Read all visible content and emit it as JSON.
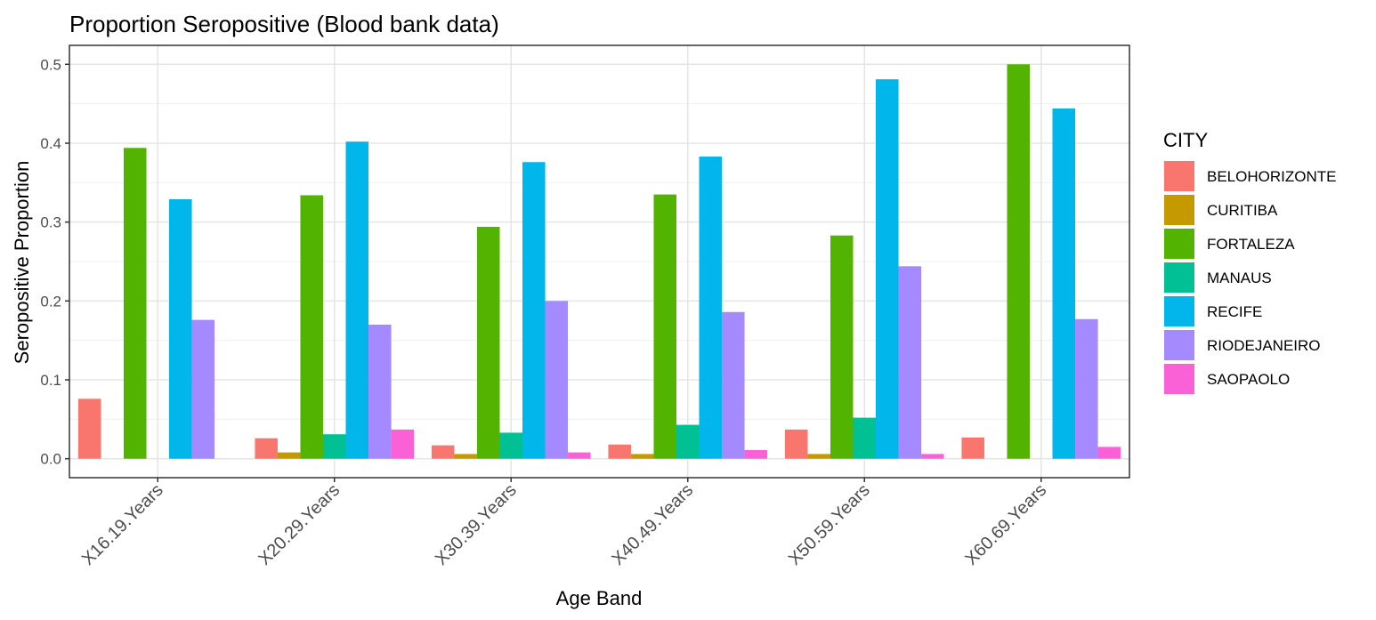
{
  "chart_data": {
    "type": "bar",
    "title": "Proportion Seropositive (Blood bank data)",
    "xlabel": "Age Band",
    "ylabel": "Seropositive Proportion",
    "ylim": [
      -0.024,
      0.524
    ],
    "yticks": [
      0.0,
      0.1,
      0.2,
      0.3,
      0.4,
      0.5
    ],
    "ytick_labels": [
      "0.0",
      "0.1",
      "0.2",
      "0.3",
      "0.4",
      "0.5"
    ],
    "grid": true,
    "legend_title": "CITY",
    "legend_position": "right",
    "categories": [
      "X16.19.Years",
      "X20.29.Years",
      "X30.39.Years",
      "X40.49.Years",
      "X50.59.Years",
      "X60.69.Years"
    ],
    "series": [
      {
        "name": "BELOHORIZONTE",
        "color": "#F8766D",
        "values": [
          0.076,
          0.026,
          0.017,
          0.018,
          0.037,
          0.027
        ]
      },
      {
        "name": "CURITIBA",
        "color": "#C49A00",
        "values": [
          null,
          0.008,
          0.006,
          0.006,
          0.006,
          null
        ]
      },
      {
        "name": "FORTALEZA",
        "color": "#53B400",
        "values": [
          0.394,
          0.334,
          0.294,
          0.335,
          0.283,
          0.5
        ]
      },
      {
        "name": "MANAUS",
        "color": "#00C094",
        "values": [
          null,
          0.031,
          0.033,
          0.043,
          0.052,
          null
        ]
      },
      {
        "name": "RECIFE",
        "color": "#00B6EB",
        "values": [
          0.329,
          0.402,
          0.376,
          0.383,
          0.481,
          0.444
        ]
      },
      {
        "name": "RIODEJANEIRO",
        "color": "#A58AFF",
        "values": [
          0.176,
          0.17,
          0.2,
          0.186,
          0.244,
          0.177
        ]
      },
      {
        "name": "SAOPAOLO",
        "color": "#FB61D7",
        "values": [
          null,
          0.037,
          0.008,
          0.011,
          0.006,
          0.015
        ]
      }
    ]
  }
}
